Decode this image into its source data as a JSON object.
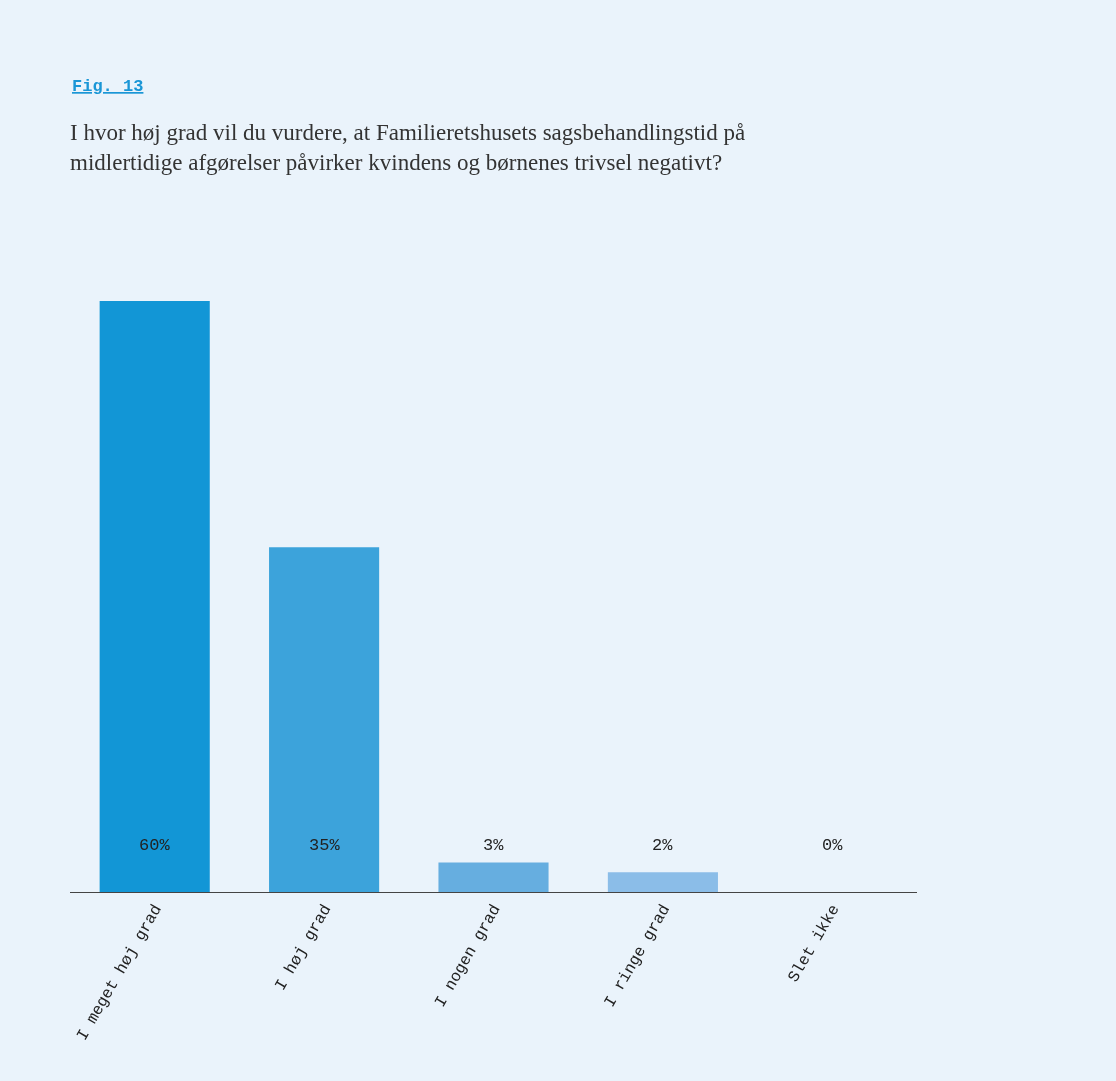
{
  "chart_data": {
    "type": "bar",
    "title": "I hvor høj grad vil du vurdere, at Familieretshusets sagsbehandlingstid på\nmidlertidige afgørelser påvirker kvindens og børnenes trivsel negativt?",
    "annotations": [
      "Fig. 13"
    ],
    "categories": [
      "I meget høj grad",
      "I høj grad",
      "I nogen grad",
      "I ringe grad",
      "Slet ikke"
    ],
    "values": [
      60,
      35,
      3,
      2,
      0
    ],
    "colors": [
      "#1296d6",
      "#3ca3db",
      "#66aee0",
      "#8bbde8",
      "#a9cdef"
    ],
    "value_labels": [
      "60%",
      "35%",
      "3%",
      "2%",
      "0%"
    ],
    "grid": false,
    "legend": false
  }
}
